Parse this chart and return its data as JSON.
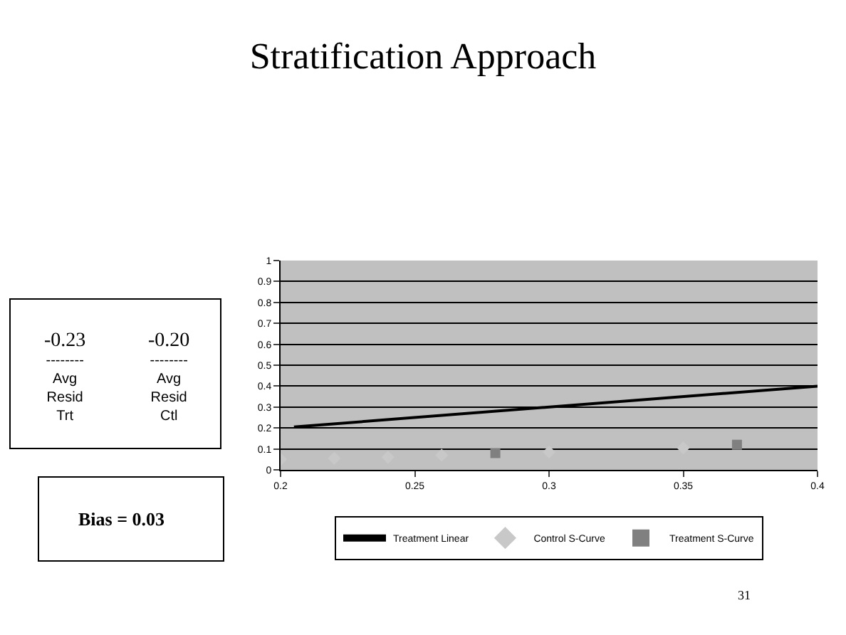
{
  "chart_data": {
    "type": "scatter",
    "title": "Stratification Approach",
    "xlim": [
      0.2,
      0.4
    ],
    "xticks": [
      0.2,
      0.25,
      0.3,
      0.35,
      0.4
    ],
    "ylim": [
      0,
      1
    ],
    "yticks": [
      0,
      0.1,
      0.2,
      0.3,
      0.4,
      0.5,
      0.6,
      0.7,
      0.8,
      0.9,
      1
    ],
    "grid": "y",
    "legend": "bottom",
    "series": [
      {
        "name": "Treatment Linear",
        "type": "line",
        "color": "#000000",
        "marker": "none",
        "line_style": "solid",
        "x": [
          0.205,
          0.4
        ],
        "values": [
          0.205,
          0.4
        ]
      },
      {
        "name": "Control S-Curve",
        "color": "#c8c8c8",
        "marker": "diamond",
        "x": [
          0.2,
          0.22,
          0.24,
          0.26,
          0.3,
          0.35
        ],
        "values": [
          0.05,
          0.055,
          0.06,
          0.07,
          0.085,
          0.105
        ]
      },
      {
        "name": "Treatment S-Curve",
        "color": "#808080",
        "marker": "square",
        "x": [
          0.28,
          0.37
        ],
        "values": [
          0.08,
          0.12
        ]
      }
    ],
    "annotations": [
      "-0.23\n--------\nAvg\nResid\nTrt",
      "-0.20\n--------\nAvg\nResid\nCtl",
      "Bias = 0.03",
      "31"
    ]
  }
}
